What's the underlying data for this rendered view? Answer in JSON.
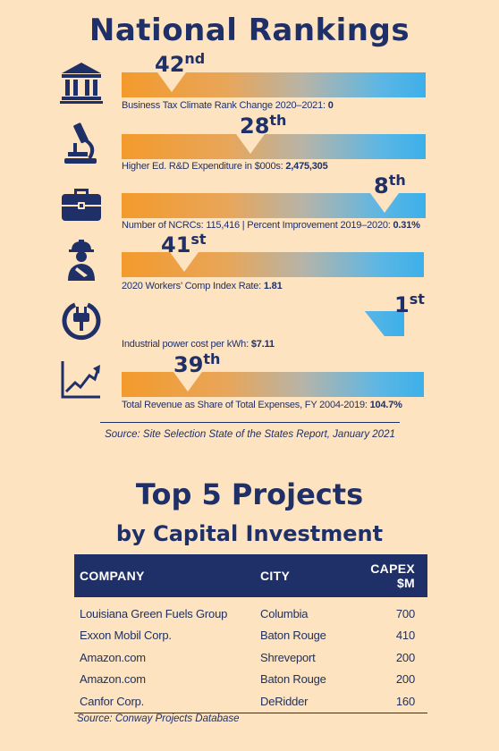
{
  "header": {
    "title": "National Rankings"
  },
  "rankings": [
    {
      "rank": "42",
      "suffix": "nd",
      "caption_label": "Business Tax Climate Rank Change 2020–2021:",
      "caption_value": "0",
      "icon": "government-building-icon",
      "progress": 0.17
    },
    {
      "rank": "28",
      "suffix": "th",
      "caption_label": "Higher Ed. R&D Expenditure in $000s:",
      "caption_value": "2,475,305",
      "icon": "microscope-icon",
      "progress": 0.45
    },
    {
      "rank": "8",
      "suffix": "th",
      "caption_label": "Number of NCRCs: 115,416 | Percent Improvement 2019–2020:",
      "caption_value": "0.31%",
      "icon": "briefcase-icon",
      "progress": 0.88
    },
    {
      "rank": "41",
      "suffix": "st",
      "caption_label": "2020 Workers’ Comp Index Rate:",
      "caption_value": "1.81",
      "icon": "injured-worker-icon",
      "progress": 0.19
    },
    {
      "rank": "1",
      "suffix": "st",
      "caption_label": "Industrial power cost per kWh:",
      "caption_value": "$7.11",
      "icon": "power-plug-icon",
      "progress": 1.0
    },
    {
      "rank": "39",
      "suffix": "th",
      "caption_label": "Total Revenue as Share of Total Expenses, FY 2004-2019:",
      "caption_value": "104.7%",
      "icon": "growth-chart-icon",
      "progress": 0.23
    }
  ],
  "source1": "Source: Site Selection State of the States Report, January 2021",
  "projects": {
    "title": "Top 5 Projects",
    "subtitle": "by Capital Investment",
    "headers": {
      "company": "COMPANY",
      "city": "CITY",
      "capex": "CAPEX $M"
    },
    "rows": [
      {
        "company": "Louisiana Green Fuels Group",
        "city": "Columbia",
        "capex": "700"
      },
      {
        "company": "Exxon Mobil Corp.",
        "city": "Baton Rouge",
        "capex": "410"
      },
      {
        "company": "Amazon.com",
        "city": "Shreveport",
        "capex": "200"
      },
      {
        "company": "Amazon.com",
        "city": "Baton Rouge",
        "capex": "200"
      },
      {
        "company": "Canfor Corp.",
        "city": "DeRidder",
        "capex": "160"
      }
    ],
    "source": "Source: Conway Projects Database"
  },
  "colors": {
    "navy": "#1f3068",
    "orange": "#f39a2c",
    "blue": "#3cb0ea",
    "background": "#fde3c0"
  }
}
